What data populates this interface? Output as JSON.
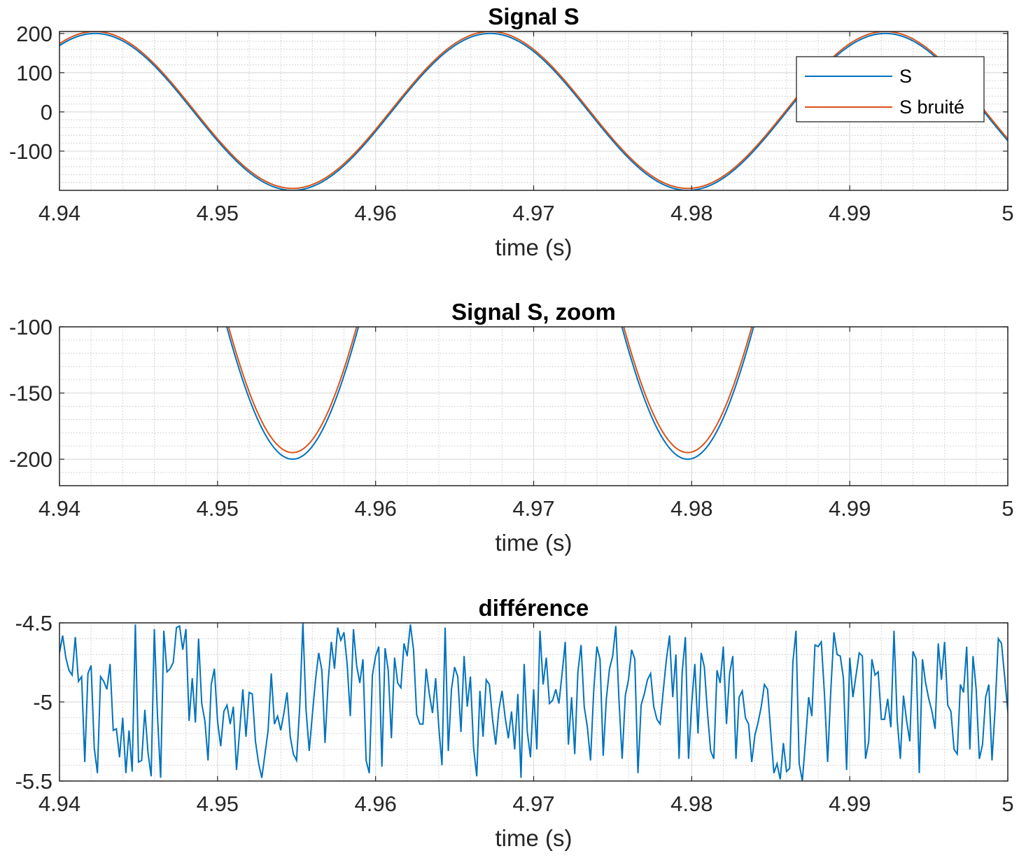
{
  "chart_data": [
    {
      "type": "line",
      "title": "Signal S",
      "xlabel": "time (s)",
      "ylabel": "",
      "xlim": [
        4.94,
        5.0
      ],
      "ylim": [
        -200,
        205
      ],
      "xticks": [
        4.94,
        4.95,
        4.96,
        4.97,
        4.98,
        4.99,
        5.0
      ],
      "xtick_labels": [
        "4.94",
        "4.95",
        "4.96",
        "4.97",
        "4.98",
        "4.99",
        "5"
      ],
      "yticks": [
        -100,
        0,
        100,
        200
      ],
      "ytick_labels": [
        "-100",
        "0",
        "100",
        "200"
      ],
      "grid": true,
      "minor_grid": true,
      "legend": "top-right",
      "series": [
        {
          "name": "S",
          "color": "#0072BD",
          "function": "sine",
          "amplitude": 200,
          "frequency_hz": 40,
          "peak_time": 4.99225,
          "offset": 0
        },
        {
          "name": "S bruité",
          "color": "#D95319",
          "function": "sine",
          "amplitude": 200,
          "frequency_hz": 40,
          "peak_time": 4.99225,
          "offset": 5
        }
      ]
    },
    {
      "type": "line",
      "title": "Signal S, zoom",
      "xlabel": "time (s)",
      "ylabel": "",
      "xlim": [
        4.94,
        5.0
      ],
      "ylim": [
        -220,
        -100
      ],
      "xticks": [
        4.94,
        4.95,
        4.96,
        4.97,
        4.98,
        4.99,
        5.0
      ],
      "xtick_labels": [
        "4.94",
        "4.95",
        "4.96",
        "4.97",
        "4.98",
        "4.99",
        "5"
      ],
      "yticks": [
        -200,
        -150,
        -100
      ],
      "ytick_labels": [
        "-200",
        "-150",
        "-100"
      ],
      "grid": true,
      "minor_grid": true,
      "series": [
        {
          "name": "S",
          "color": "#0072BD",
          "function": "sine",
          "amplitude": 200,
          "frequency_hz": 40,
          "peak_time": 4.99225,
          "offset": 0
        },
        {
          "name": "S bruité",
          "color": "#D95319",
          "function": "sine",
          "amplitude": 200,
          "frequency_hz": 40,
          "peak_time": 4.99225,
          "offset": 5
        }
      ]
    },
    {
      "type": "line",
      "title": "différence",
      "xlabel": "time (s)",
      "ylabel": "",
      "xlim": [
        4.94,
        5.0
      ],
      "ylim": [
        -5.5,
        -4.5
      ],
      "xticks": [
        4.94,
        4.95,
        4.96,
        4.97,
        4.98,
        4.99,
        5.0
      ],
      "xtick_labels": [
        "4.94",
        "4.95",
        "4.96",
        "4.97",
        "4.98",
        "4.99",
        "5"
      ],
      "yticks": [
        -5.5,
        -5,
        -4.5
      ],
      "ytick_labels": [
        "-5.5",
        "-5",
        "-4.5"
      ],
      "grid": true,
      "minor_grid": true,
      "series": [
        {
          "name": "",
          "color": "#0072BD",
          "x_start": 4.94,
          "x_step": 0.0002,
          "y": [
            -4.69,
            -4.58,
            -4.72,
            -4.8,
            -4.83,
            -4.59,
            -4.87,
            -4.84,
            -5.38,
            -4.82,
            -4.77,
            -5.29,
            -5.45,
            -4.84,
            -4.87,
            -4.92,
            -4.76,
            -5.18,
            -5.17,
            -5.35,
            -5.1,
            -5.45,
            -5.18,
            -5.44,
            -4.51,
            -5.38,
            -5.37,
            -5.05,
            -5.32,
            -5.47,
            -4.54,
            -5.09,
            -5.48,
            -4.55,
            -4.81,
            -4.79,
            -4.75,
            -4.53,
            -4.52,
            -4.67,
            -4.54,
            -5.12,
            -4.85,
            -5.13,
            -4.6,
            -5.01,
            -5.12,
            -5.37,
            -4.89,
            -4.79,
            -5.12,
            -5.28,
            -5.06,
            -5.02,
            -5.14,
            -5.03,
            -5.43,
            -5.18,
            -4.92,
            -5.22,
            -4.94,
            -4.95,
            -5.25,
            -5.39,
            -5.48,
            -5.33,
            -5.18,
            -4.82,
            -5.14,
            -5.09,
            -5.18,
            -5.07,
            -4.94,
            -5.22,
            -5.33,
            -5.37,
            -5.03,
            -4.5,
            -5.05,
            -5.31,
            -5.08,
            -4.86,
            -4.69,
            -4.8,
            -5.26,
            -4.87,
            -4.62,
            -4.79,
            -4.53,
            -4.61,
            -4.56,
            -4.76,
            -5.09,
            -4.54,
            -4.77,
            -4.88,
            -4.73,
            -5.37,
            -5.45,
            -4.83,
            -4.71,
            -4.65,
            -5.41,
            -4.66,
            -4.8,
            -5.23,
            -4.72,
            -4.88,
            -4.91,
            -4.63,
            -4.71,
            -4.51,
            -4.67,
            -5.08,
            -5.14,
            -5.14,
            -4.79,
            -4.95,
            -5.07,
            -4.85,
            -5.16,
            -5.4,
            -4.53,
            -5.31,
            -4.92,
            -4.78,
            -4.84,
            -5.19,
            -4.71,
            -5.03,
            -4.84,
            -5.29,
            -5.47,
            -4.93,
            -5.22,
            -4.86,
            -4.89,
            -5.11,
            -5.27,
            -5.05,
            -4.93,
            -5.1,
            -5.23,
            -5.06,
            -5.3,
            -4.95,
            -5.48,
            -4.76,
            -5.19,
            -5.35,
            -4.92,
            -5.3,
            -4.55,
            -4.89,
            -4.72,
            -5.01,
            -4.99,
            -4.92,
            -5.01,
            -4.82,
            -4.62,
            -5.27,
            -4.97,
            -5.33,
            -4.81,
            -4.64,
            -5.03,
            -5.16,
            -5.37,
            -4.93,
            -4.65,
            -4.73,
            -5.34,
            -4.98,
            -4.79,
            -4.71,
            -4.52,
            -4.99,
            -5.36,
            -4.96,
            -4.86,
            -4.67,
            -4.73,
            -5.45,
            -5.02,
            -4.95,
            -4.86,
            -4.82,
            -5.03,
            -5.11,
            -5.14,
            -4.93,
            -4.73,
            -4.58,
            -4.97,
            -4.7,
            -5.36,
            -4.81,
            -4.59,
            -5.36,
            -5.01,
            -4.76,
            -5.2,
            -4.69,
            -4.78,
            -5.07,
            -5.31,
            -5.36,
            -4.8,
            -4.88,
            -4.65,
            -5.14,
            -4.82,
            -4.71,
            -5.36,
            -4.97,
            -4.93,
            -5.1,
            -5.14,
            -5.38,
            -5.21,
            -5.13,
            -5.03,
            -4.89,
            -4.92,
            -5.19,
            -5.45,
            -5.39,
            -5.49,
            -5.26,
            -5.44,
            -5.42,
            -4.75,
            -4.55,
            -5.39,
            -5.5,
            -5.25,
            -4.97,
            -5.09,
            -4.64,
            -4.65,
            -4.62,
            -4.95,
            -5.38,
            -4.93,
            -4.56,
            -4.7,
            -4.71,
            -4.85,
            -5.43,
            -4.72,
            -4.97,
            -4.83,
            -4.69,
            -4.71,
            -5.36,
            -5.25,
            -4.73,
            -4.83,
            -4.81,
            -5.11,
            -5.11,
            -4.98,
            -5.16,
            -4.55,
            -5.11,
            -5.36,
            -4.96,
            -5.12,
            -5.25,
            -4.68,
            -4.73,
            -5.45,
            -4.73,
            -4.88,
            -4.98,
            -5.06,
            -5.17,
            -4.63,
            -4.86,
            -4.62,
            -5.02,
            -5.06,
            -5.3,
            -5.33,
            -4.89,
            -4.94,
            -4.65,
            -5.3,
            -4.71,
            -4.92,
            -5.36,
            -5.27,
            -4.97,
            -4.89,
            -5.37,
            -5.04,
            -4.6,
            -4.63,
            -4.84,
            -5.06,
            -5.2,
            -5.32,
            -5.07
          ]
        }
      ]
    }
  ]
}
